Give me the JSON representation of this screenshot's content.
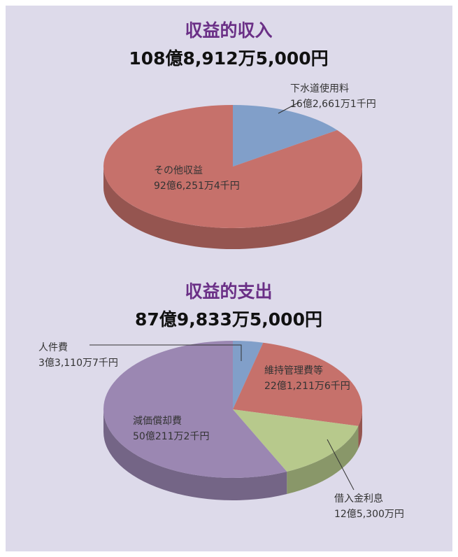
{
  "chart_data": [
    {
      "type": "pie",
      "title": "収益的収入",
      "subtitle": "108億8,912万5,000円",
      "categories": [
        "下水道使用料",
        "その他収益"
      ],
      "values": [
        1626611000,
        9262514000
      ],
      "value_labels": [
        "16億2,661万1千円",
        "92億6,251万4千円"
      ],
      "colors": [
        "#819fc9",
        "#c6716b"
      ]
    },
    {
      "type": "pie",
      "title": "収益的支出",
      "subtitle": "87億9,833万5,000円",
      "categories": [
        "人件費",
        "維持管理費等",
        "借入金利息",
        "減価償却費"
      ],
      "values": [
        331107000,
        2212116000,
        1253000000,
        5002112000
      ],
      "value_labels": [
        "3億3,110万7千円",
        "22億1,211万6千円",
        "12億5,300万円",
        "50億211万2千円"
      ],
      "colors": [
        "#819fc9",
        "#c6716b",
        "#b7c98c",
        "#9b87b2"
      ]
    }
  ]
}
